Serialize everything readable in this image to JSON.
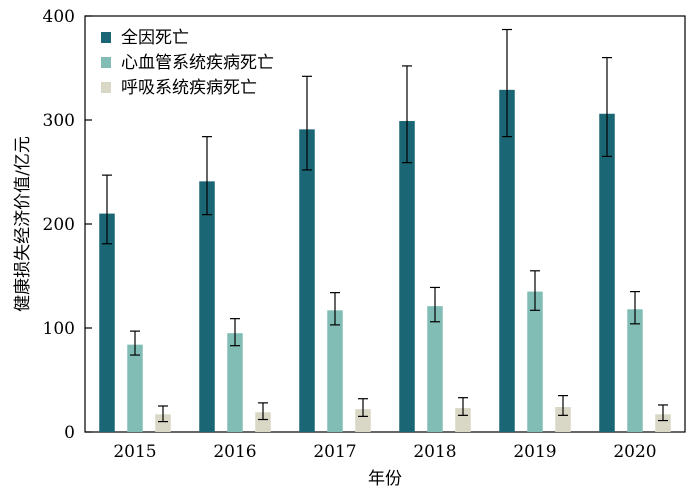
{
  "chart_data": {
    "type": "bar",
    "title": "",
    "xlabel": "年份",
    "ylabel": "健康损失经济价值/亿元",
    "categories": [
      "2015",
      "2016",
      "2017",
      "2018",
      "2019",
      "2020"
    ],
    "ylim": [
      0,
      400
    ],
    "yticks": [
      0,
      100,
      200,
      300,
      400
    ],
    "grid": false,
    "legend_position": "top-left",
    "series": [
      {
        "name": "全因死亡",
        "color": "#1a6675",
        "values": [
          210,
          241,
          291,
          299,
          329,
          306
        ],
        "error_low": [
          181,
          209,
          252,
          259,
          284,
          265
        ],
        "error_high": [
          247,
          284,
          342,
          352,
          387,
          360
        ]
      },
      {
        "name": "心血管系统疾病死亡",
        "color": "#82bdb5",
        "values": [
          84,
          95,
          117,
          121,
          135,
          118
        ],
        "error_low": [
          74,
          83,
          103,
          106,
          117,
          104
        ],
        "error_high": [
          97,
          109,
          134,
          139,
          155,
          135
        ]
      },
      {
        "name": "呼吸系统疾病死亡",
        "color": "#d9d8c6",
        "values": [
          17,
          19,
          22,
          23,
          24,
          17
        ],
        "error_low": [
          10,
          12,
          15,
          16,
          16,
          11
        ],
        "error_high": [
          25,
          28,
          32,
          33,
          35,
          26
        ]
      }
    ]
  }
}
